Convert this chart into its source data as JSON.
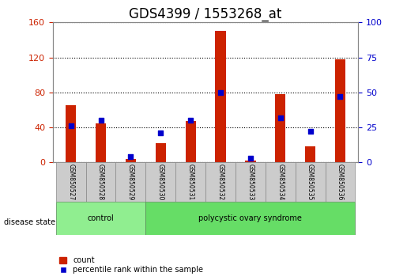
{
  "title": "GDS4399 / 1553268_at",
  "samples": [
    "GSM850527",
    "GSM850528",
    "GSM850529",
    "GSM850530",
    "GSM850531",
    "GSM850532",
    "GSM850533",
    "GSM850534",
    "GSM850535",
    "GSM850536"
  ],
  "counts": [
    65,
    45,
    4,
    22,
    47,
    150,
    2,
    78,
    18,
    118
  ],
  "percentiles": [
    26,
    30,
    4,
    21,
    30,
    50,
    3,
    32,
    22,
    47
  ],
  "groups": [
    {
      "label": "control",
      "start": 0,
      "end": 3,
      "color": "#90ee90"
    },
    {
      "label": "polycystic ovary syndrome",
      "start": 3,
      "end": 10,
      "color": "#66dd66"
    }
  ],
  "bar_color": "#cc2200",
  "dot_color": "#0000cc",
  "bar_width": 0.35,
  "ylim_left": [
    0,
    160
  ],
  "ylim_right": [
    0,
    100
  ],
  "yticks_left": [
    0,
    40,
    80,
    120,
    160
  ],
  "yticks_right": [
    0,
    25,
    50,
    75,
    100
  ],
  "grid_color": "#000000",
  "bg_color": "#ffffff",
  "tick_area_color": "#cccccc",
  "disease_label": "disease state",
  "legend_count": "count",
  "legend_percentile": "percentile rank within the sample",
  "left_tick_color": "#cc2200",
  "right_tick_color": "#0000cc",
  "title_fontsize": 12
}
